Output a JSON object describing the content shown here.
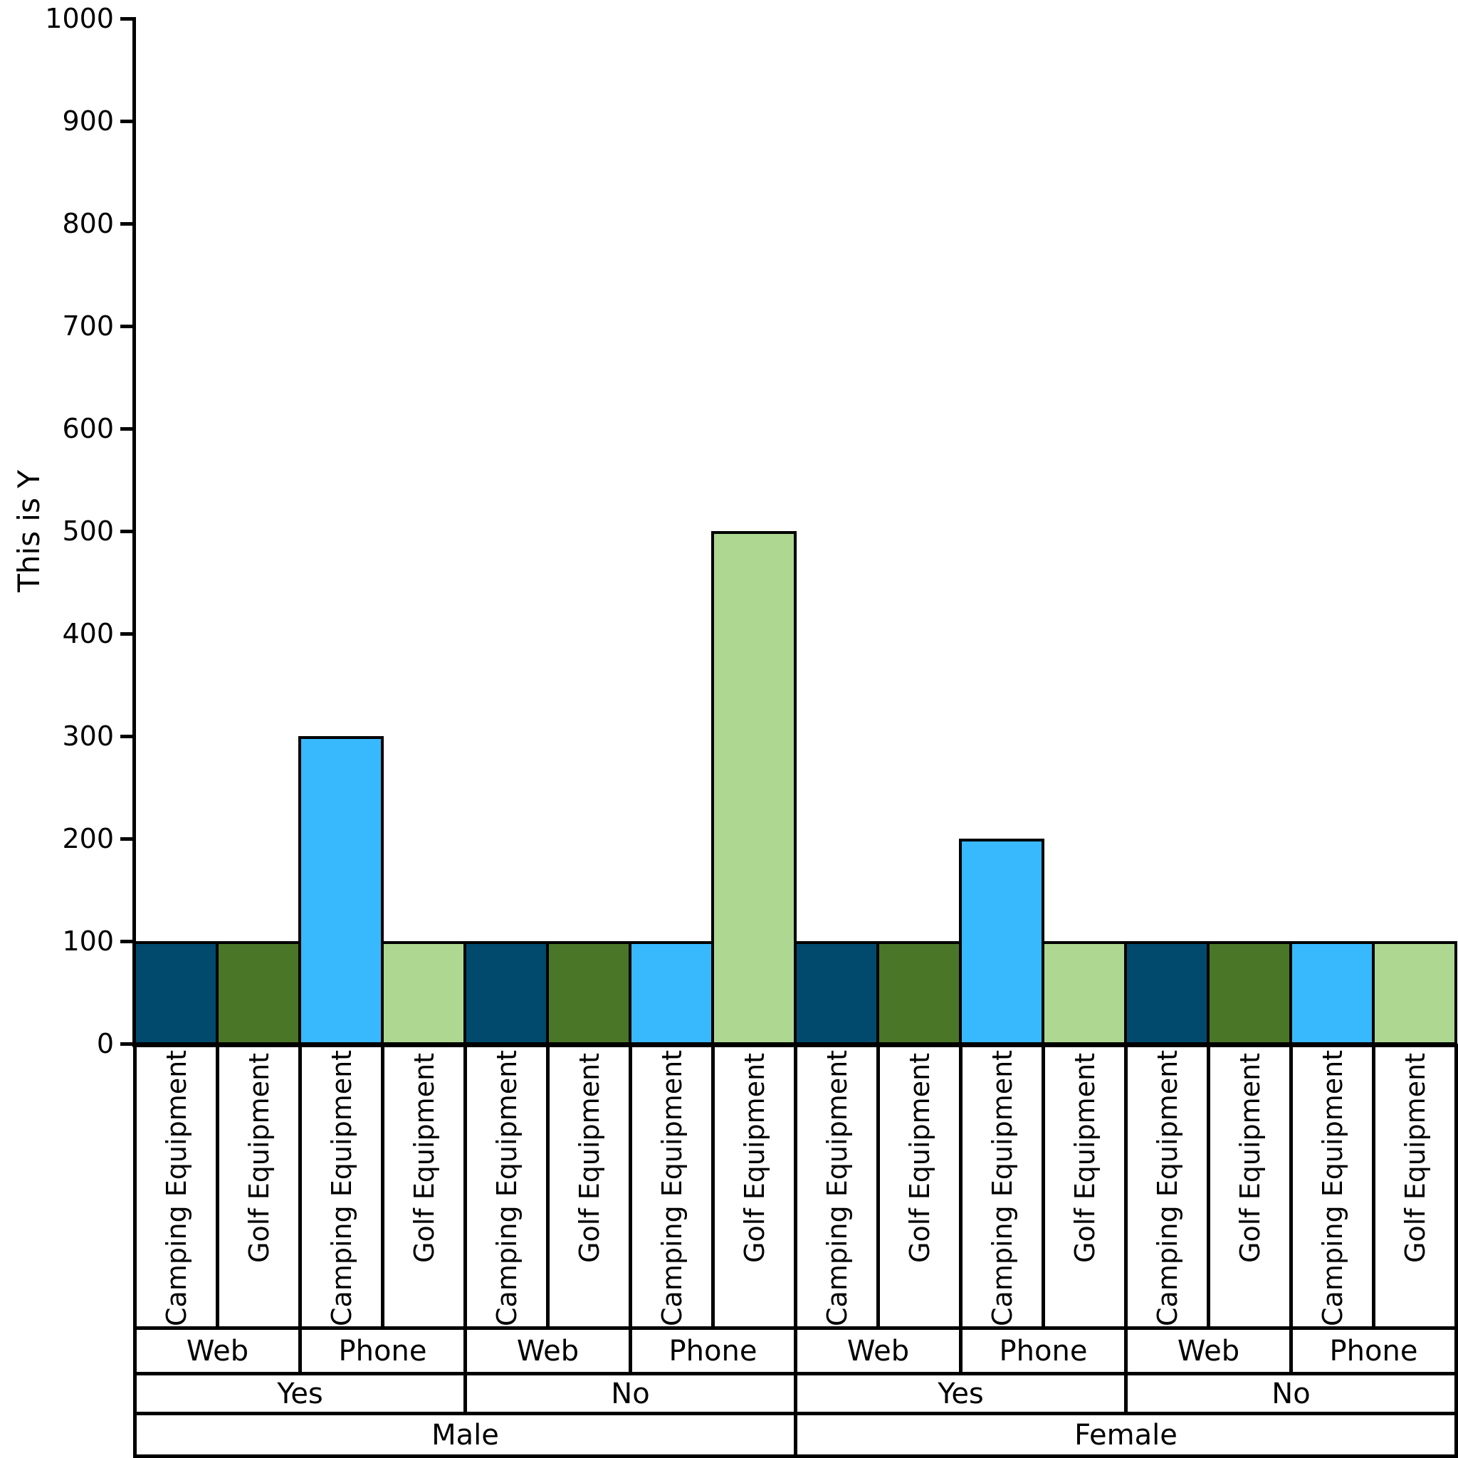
{
  "chart_data": {
    "type": "bar",
    "title": "",
    "ylabel": "This is Y",
    "xlabel": "",
    "ylim": [
      0,
      1000
    ],
    "yticks": [
      0,
      100,
      200,
      300,
      400,
      500,
      600,
      700,
      800,
      900,
      1000
    ],
    "grid": false,
    "legend": null,
    "background": "#ffffff",
    "bar_edge_color": "#000000",
    "palette": {
      "camping_web": "#014a6e",
      "golf_web": "#4a7628",
      "camping_phone": "#38b8fd",
      "golf_phone": "#aed892"
    },
    "bars": [
      {
        "gender": "Male",
        "response": "Yes",
        "channel": "Web",
        "product": "Camping Equipment",
        "value": 100,
        "color": "#014a6e"
      },
      {
        "gender": "Male",
        "response": "Yes",
        "channel": "Web",
        "product": "Golf Equipment",
        "value": 100,
        "color": "#4a7628"
      },
      {
        "gender": "Male",
        "response": "Yes",
        "channel": "Phone",
        "product": "Camping Equipment",
        "value": 300,
        "color": "#38b8fd"
      },
      {
        "gender": "Male",
        "response": "Yes",
        "channel": "Phone",
        "product": "Golf Equipment",
        "value": 100,
        "color": "#aed892"
      },
      {
        "gender": "Male",
        "response": "No",
        "channel": "Web",
        "product": "Camping Equipment",
        "value": 100,
        "color": "#014a6e"
      },
      {
        "gender": "Male",
        "response": "No",
        "channel": "Web",
        "product": "Golf Equipment",
        "value": 100,
        "color": "#4a7628"
      },
      {
        "gender": "Male",
        "response": "No",
        "channel": "Phone",
        "product": "Camping Equipment",
        "value": 100,
        "color": "#38b8fd"
      },
      {
        "gender": "Male",
        "response": "No",
        "channel": "Phone",
        "product": "Golf Equipment",
        "value": 500,
        "color": "#aed892"
      },
      {
        "gender": "Female",
        "response": "Yes",
        "channel": "Web",
        "product": "Camping Equipment",
        "value": 100,
        "color": "#014a6e"
      },
      {
        "gender": "Female",
        "response": "Yes",
        "channel": "Web",
        "product": "Golf Equipment",
        "value": 100,
        "color": "#4a7628"
      },
      {
        "gender": "Female",
        "response": "Yes",
        "channel": "Phone",
        "product": "Camping Equipment",
        "value": 200,
        "color": "#38b8fd"
      },
      {
        "gender": "Female",
        "response": "Yes",
        "channel": "Phone",
        "product": "Golf Equipment",
        "value": 100,
        "color": "#aed892"
      },
      {
        "gender": "Female",
        "response": "No",
        "channel": "Web",
        "product": "Camping Equipment",
        "value": 100,
        "color": "#014a6e"
      },
      {
        "gender": "Female",
        "response": "No",
        "channel": "Web",
        "product": "Golf Equipment",
        "value": 100,
        "color": "#4a7628"
      },
      {
        "gender": "Female",
        "response": "No",
        "channel": "Phone",
        "product": "Camping Equipment",
        "value": 100,
        "color": "#38b8fd"
      },
      {
        "gender": "Female",
        "response": "No",
        "channel": "Phone",
        "product": "Golf Equipment",
        "value": 100,
        "color": "#aed892"
      }
    ],
    "x_label_rows": [
      {
        "level": "product",
        "cells": [
          {
            "label": "Camping Equipment",
            "span": 1
          },
          {
            "label": "Golf Equipment",
            "span": 1
          },
          {
            "label": "Camping Equipment",
            "span": 1
          },
          {
            "label": "Golf Equipment",
            "span": 1
          },
          {
            "label": "Camping Equipment",
            "span": 1
          },
          {
            "label": "Golf Equipment",
            "span": 1
          },
          {
            "label": "Camping Equipment",
            "span": 1
          },
          {
            "label": "Golf Equipment",
            "span": 1
          },
          {
            "label": "Camping Equipment",
            "span": 1
          },
          {
            "label": "Golf Equipment",
            "span": 1
          },
          {
            "label": "Camping Equipment",
            "span": 1
          },
          {
            "label": "Golf Equipment",
            "span": 1
          },
          {
            "label": "Camping Equipment",
            "span": 1
          },
          {
            "label": "Golf Equipment",
            "span": 1
          },
          {
            "label": "Camping Equipment",
            "span": 1
          },
          {
            "label": "Golf Equipment",
            "span": 1
          }
        ]
      },
      {
        "level": "channel",
        "cells": [
          {
            "label": "Web",
            "span": 2
          },
          {
            "label": "Phone",
            "span": 2
          },
          {
            "label": "Web",
            "span": 2
          },
          {
            "label": "Phone",
            "span": 2
          },
          {
            "label": "Web",
            "span": 2
          },
          {
            "label": "Phone",
            "span": 2
          },
          {
            "label": "Web",
            "span": 2
          },
          {
            "label": "Phone",
            "span": 2
          }
        ]
      },
      {
        "level": "response",
        "cells": [
          {
            "label": "Yes",
            "span": 4
          },
          {
            "label": "No",
            "span": 4
          },
          {
            "label": "Yes",
            "span": 4
          },
          {
            "label": "No",
            "span": 4
          }
        ]
      },
      {
        "level": "gender",
        "cells": [
          {
            "label": "Male",
            "span": 8
          },
          {
            "label": "Female",
            "span": 8
          }
        ]
      }
    ]
  }
}
